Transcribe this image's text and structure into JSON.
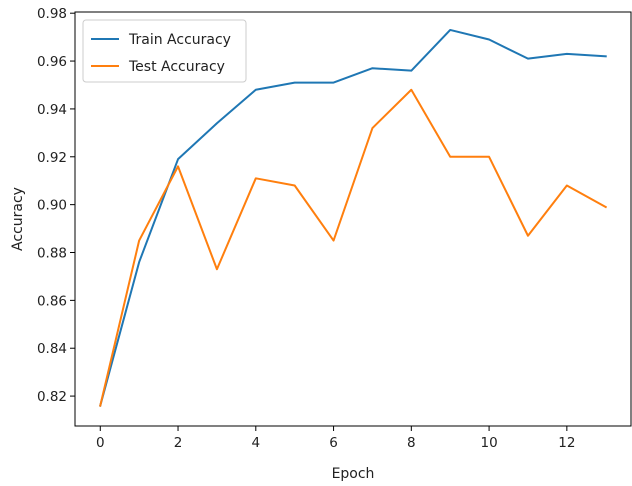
{
  "chart_data": {
    "type": "line",
    "title": "",
    "xlabel": "Epoch",
    "ylabel": "Accuracy",
    "xlim": [
      -0.65,
      13.65
    ],
    "ylim": [
      0.8075,
      0.9805
    ],
    "xticks": [
      0,
      2,
      4,
      6,
      8,
      10,
      12
    ],
    "yticks": [
      0.82,
      0.84,
      0.86,
      0.88,
      0.9,
      0.92,
      0.94,
      0.96,
      0.98
    ],
    "xtick_labels": [
      "0",
      "2",
      "4",
      "6",
      "8",
      "10",
      "12"
    ],
    "ytick_labels": [
      "0.82",
      "0.84",
      "0.86",
      "0.88",
      "0.90",
      "0.92",
      "0.94",
      "0.96",
      "0.98"
    ],
    "grid": false,
    "legend_position": "top-left",
    "x": [
      0,
      1,
      2,
      3,
      4,
      5,
      6,
      7,
      8,
      9,
      10,
      11,
      12,
      13
    ],
    "series": [
      {
        "name": "Train Accuracy",
        "color": "#1f77b4",
        "values": [
          0.816,
          0.876,
          0.919,
          0.934,
          0.948,
          0.951,
          0.951,
          0.957,
          0.956,
          0.973,
          0.969,
          0.961,
          0.963,
          0.962
        ]
      },
      {
        "name": "Test Accuracy",
        "color": "#ff7f0e",
        "values": [
          0.816,
          0.885,
          0.916,
          0.873,
          0.911,
          0.908,
          0.885,
          0.932,
          0.948,
          0.92,
          0.92,
          0.887,
          0.908,
          0.899
        ]
      }
    ]
  }
}
